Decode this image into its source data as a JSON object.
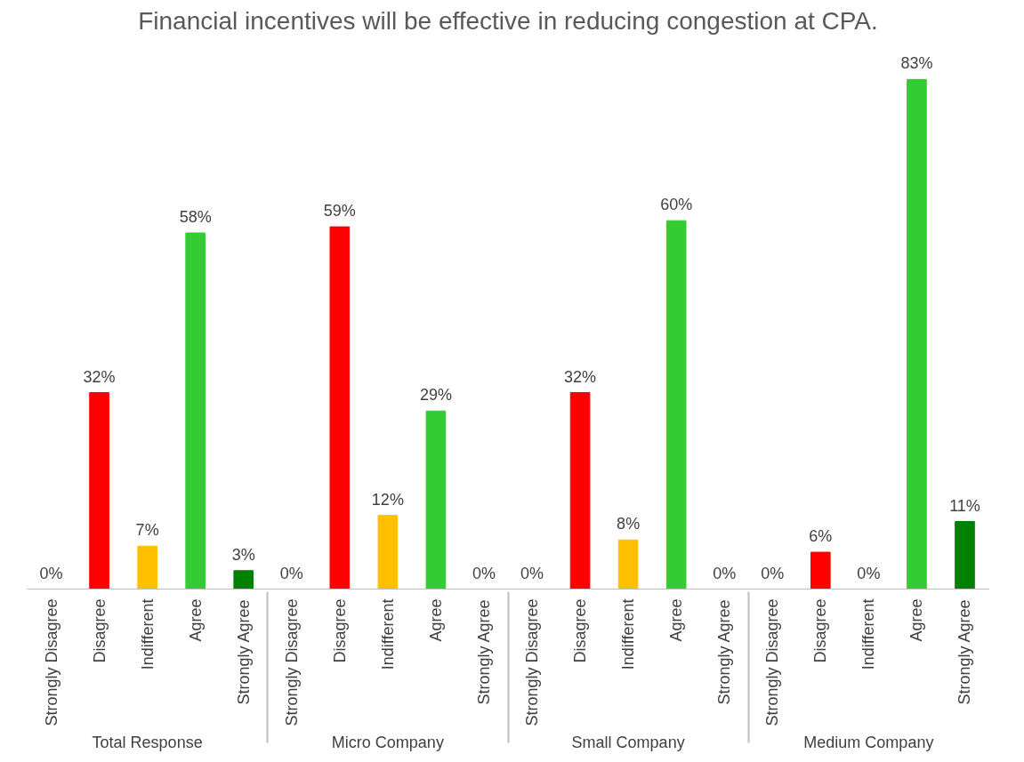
{
  "chart_data": {
    "type": "bar",
    "title": "Financial incentives will be effective in reducing congestion at CPA.",
    "categories": [
      "Total Response",
      "Micro Company",
      "Small Company",
      "Medium Company"
    ],
    "series": [
      {
        "name": "Strongly Disagree",
        "color": "#c00000",
        "values": [
          0,
          0,
          0,
          0
        ],
        "value_labels": [
          "0%",
          "0%",
          "0%",
          "0%"
        ]
      },
      {
        "name": "Disagree",
        "color": "#ff0000",
        "values": [
          32,
          59,
          32,
          6
        ],
        "value_labels": [
          "32%",
          "59%",
          "32%",
          "6%"
        ]
      },
      {
        "name": "Indifferent",
        "color": "#ffc000",
        "values": [
          7,
          12,
          8,
          0
        ],
        "value_labels": [
          "7%",
          "12%",
          "8%",
          "0%"
        ]
      },
      {
        "name": "Agree",
        "color": "#33cc33",
        "values": [
          58,
          29,
          60,
          83
        ],
        "value_labels": [
          "58%",
          "29%",
          "60%",
          "83%"
        ]
      },
      {
        "name": "Strongly Agree",
        "color": "#008000",
        "values": [
          3,
          0,
          0,
          11
        ],
        "value_labels": [
          "3%",
          "0%",
          "0%",
          "11%"
        ]
      }
    ],
    "grid": false
  }
}
